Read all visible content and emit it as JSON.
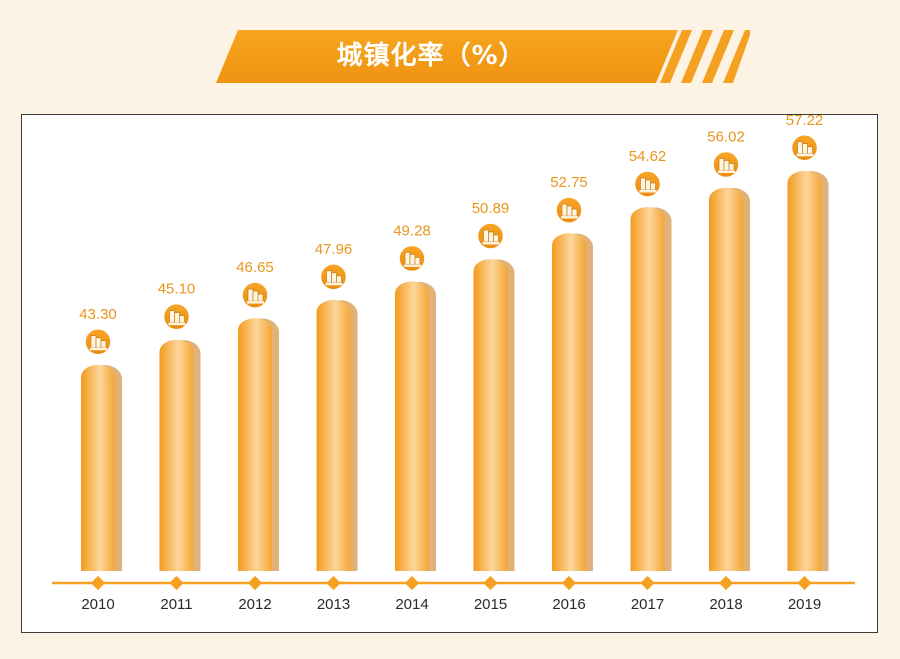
{
  "header": {
    "title": "城镇化率（%）"
  },
  "colors": {
    "accent": "#f5a020",
    "accent_dark": "#e08a10",
    "bar_shadow": "#e0b27a",
    "label": "#e8961a",
    "axis_text": "#2a2a2a",
    "background": "#fdf3e4"
  },
  "icons": {
    "per_bar": "coin-stack-icon"
  },
  "chart_data": {
    "type": "bar",
    "title": "城镇化率（%）",
    "xlabel": "",
    "ylabel": "",
    "categories": [
      "2010",
      "2011",
      "2012",
      "2013",
      "2014",
      "2015",
      "2016",
      "2017",
      "2018",
      "2019"
    ],
    "values": [
      43.3,
      45.1,
      46.65,
      47.96,
      49.28,
      50.89,
      52.75,
      54.62,
      56.02,
      57.22
    ],
    "value_labels": [
      "43.30",
      "45.10",
      "46.65",
      "47.96",
      "49.28",
      "50.89",
      "52.75",
      "54.62",
      "56.02",
      "57.22"
    ],
    "ylim": [
      28.5,
      59.5
    ],
    "grid": false,
    "legend": "none"
  }
}
